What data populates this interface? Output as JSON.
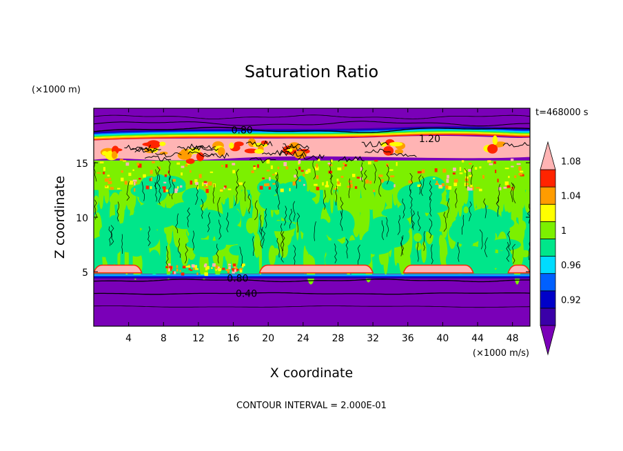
{
  "chart_data": {
    "type": "heatmap",
    "title": "Saturation Ratio",
    "xlabel": "X coordinate",
    "ylabel": "Z coordinate",
    "x_units": "(×1000 m/s)",
    "y_units": "(×1000 m)",
    "time_label": "t=468000 s",
    "footer": "CONTOUR INTERVAL = 2.000E-01",
    "xlim": [
      0,
      50
    ],
    "ylim": [
      0,
      20
    ],
    "x_ticks": [
      4,
      8,
      12,
      16,
      20,
      24,
      28,
      32,
      36,
      40,
      44,
      48
    ],
    "y_ticks": [
      5,
      10,
      15
    ],
    "colorbar": {
      "levels": [
        0.9,
        0.92,
        0.94,
        0.96,
        0.98,
        1.0,
        1.02,
        1.04,
        1.06,
        1.08,
        1.1
      ],
      "colors": [
        "#7a00b8",
        "#3a00a8",
        "#0000c8",
        "#0060ff",
        "#00dcff",
        "#00e68a",
        "#7cf000",
        "#ffff00",
        "#ff9c00",
        "#ff2400",
        "#ffb4b4"
      ],
      "labels": [
        {
          "text": "0.92",
          "value": 0.92
        },
        {
          "text": "0.96",
          "value": 0.96
        },
        {
          "text": "1",
          "value": 1.0
        },
        {
          "text": "1.04",
          "value": 1.04
        },
        {
          "text": "1.08",
          "value": 1.08
        }
      ]
    },
    "contour_labels": [
      {
        "text": "0.80",
        "x": 17.0,
        "z": 18.0
      },
      {
        "text": "1.20",
        "x": 38.5,
        "z": 17.2
      },
      {
        "text": "0.80",
        "x": 16.5,
        "z": 4.4
      },
      {
        "text": "0.40",
        "x": 17.5,
        "z": 3.0
      }
    ]
  }
}
